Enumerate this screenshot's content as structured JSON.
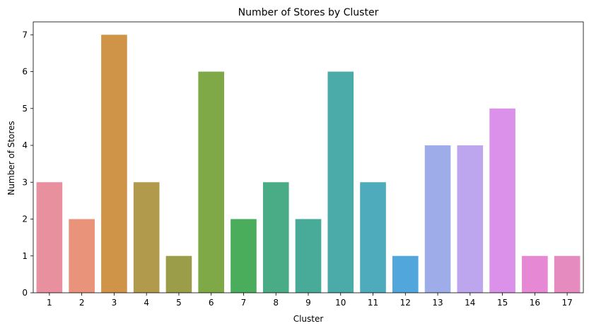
{
  "chart_data": {
    "type": "bar",
    "title": "Number of Stores by Cluster",
    "xlabel": "Cluster",
    "ylabel": "Number of Stores",
    "categories": [
      "1",
      "2",
      "3",
      "4",
      "5",
      "6",
      "7",
      "8",
      "9",
      "10",
      "11",
      "12",
      "13",
      "14",
      "15",
      "16",
      "17"
    ],
    "values": [
      3,
      2,
      7,
      3,
      1,
      6,
      2,
      3,
      2,
      6,
      3,
      1,
      4,
      4,
      5,
      1,
      1
    ],
    "colors": [
      "#e8909e",
      "#e8937a",
      "#cf9447",
      "#b19a4b",
      "#9c9d48",
      "#7fa846",
      "#4aad5c",
      "#49ac86",
      "#48aa98",
      "#4aaba9",
      "#4dabbb",
      "#51a6db",
      "#9eadea",
      "#bea6ee",
      "#db90ea",
      "#e688d4",
      "#e68bbf"
    ],
    "ylim": [
      0,
      7.35
    ],
    "yticks": [
      0,
      1,
      2,
      3,
      4,
      5,
      6,
      7
    ],
    "grid": false,
    "legend": false
  }
}
